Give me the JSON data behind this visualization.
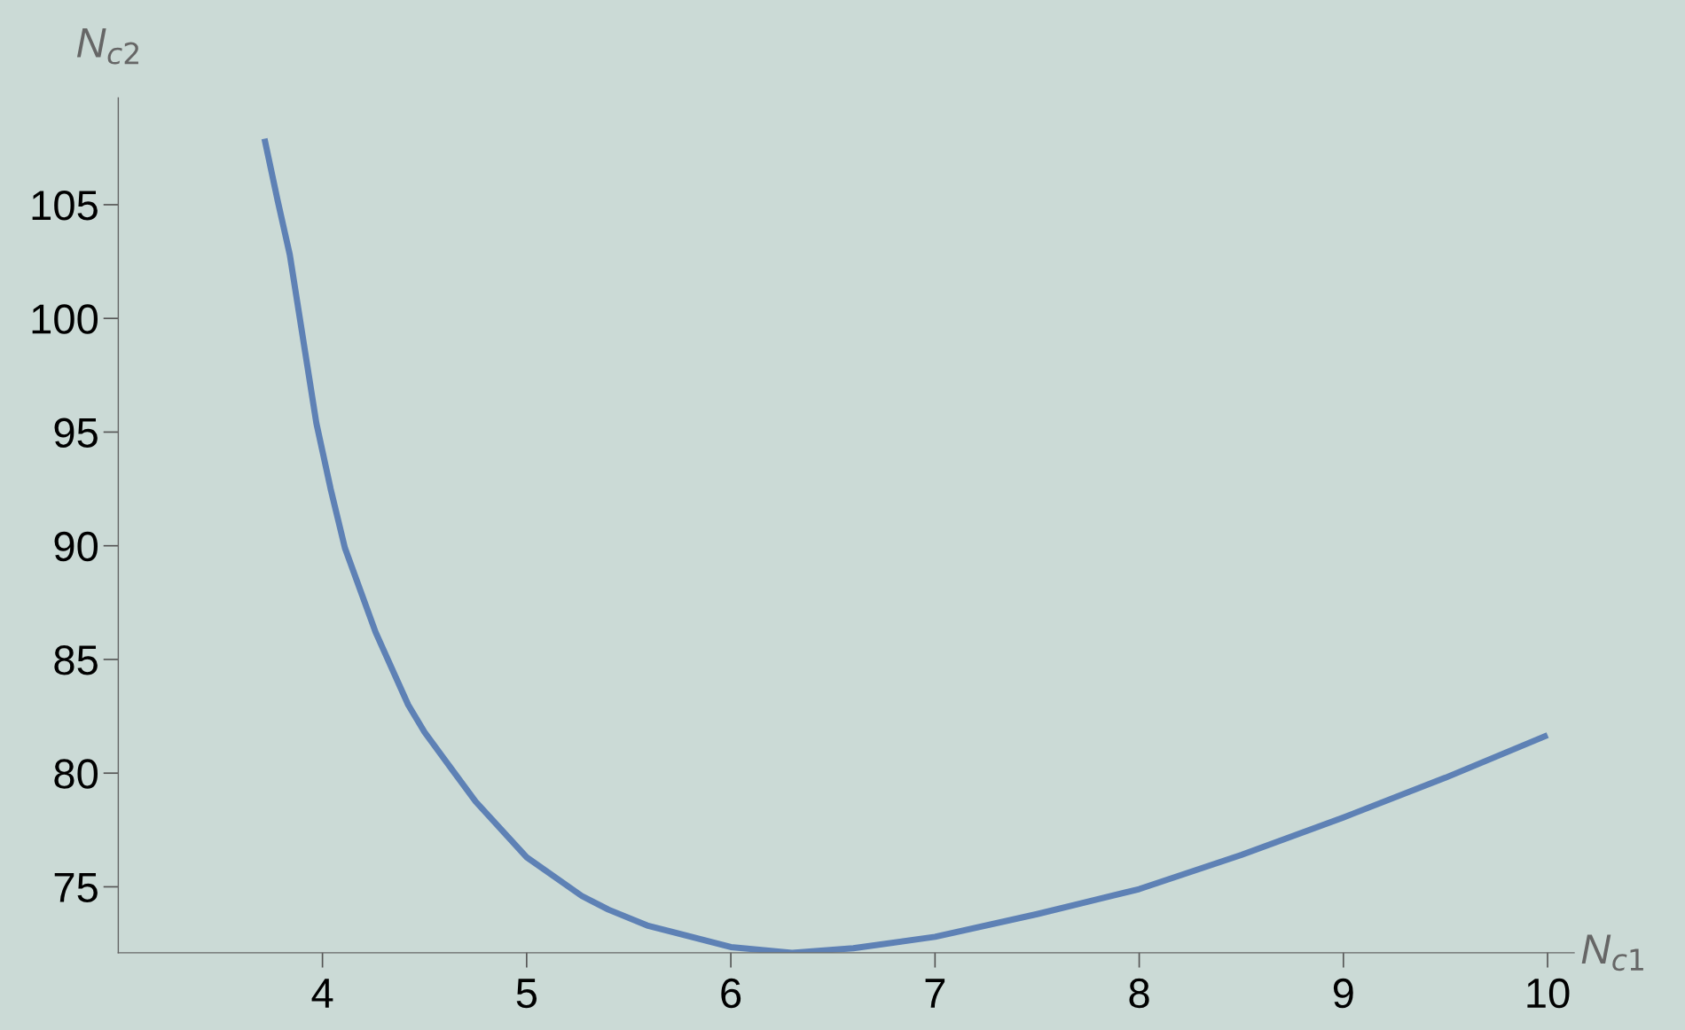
{
  "chart_data": {
    "type": "line",
    "xlabel": "N$_{c1}$",
    "ylabel": "N$_{c2}$",
    "x": [
      3.716,
      3.78,
      3.84,
      3.97,
      4.04,
      4.11,
      4.26,
      4.42,
      4.5,
      4.59,
      4.75,
      5.0,
      5.27,
      5.4,
      5.59,
      6.0,
      6.3,
      6.6,
      7.0,
      7.5,
      8.0,
      8.5,
      9.0,
      9.5,
      10.0
    ],
    "series": [
      {
        "color": "#5e81b5",
        "values": [
          107.9,
          105.2,
          102.8,
          95.4,
          92.5,
          89.9,
          86.2,
          83.0,
          81.8,
          80.7,
          78.75,
          76.3,
          74.6,
          74.0,
          73.3,
          72.35,
          72.1,
          72.3,
          72.8,
          73.8,
          74.9,
          76.4,
          78.05,
          79.8,
          81.67
        ]
      }
    ],
    "xlim": [
      3.0,
      10.13
    ],
    "ylim": [
      72.1,
      109.7
    ],
    "xticks": [
      4,
      5,
      6,
      7,
      8,
      9,
      10
    ],
    "yticks": [
      75,
      80,
      85,
      90,
      95,
      100,
      105
    ],
    "grid": false,
    "legend": false
  }
}
